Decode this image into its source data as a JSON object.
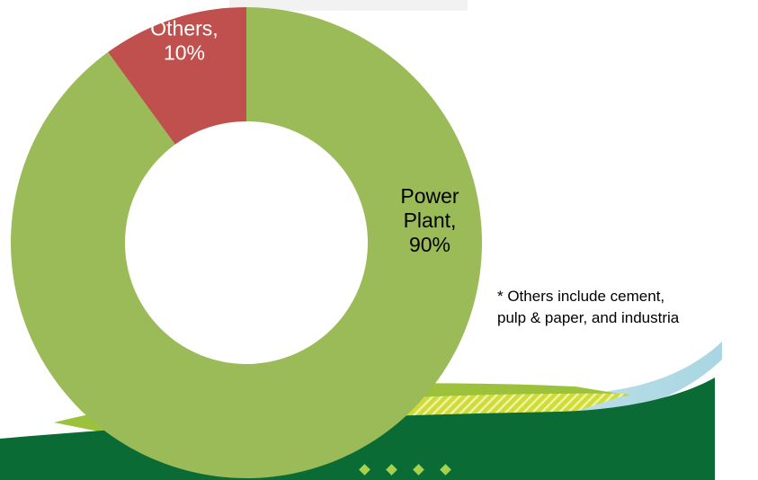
{
  "chart_data": {
    "type": "pie",
    "variant": "donut",
    "slices": [
      {
        "label_lines": [
          "Others,",
          "10%"
        ],
        "value": 10,
        "color": "#c0504d",
        "label_color": "#ffffff"
      },
      {
        "label_lines": [
          "Power",
          "Plant,",
          "90%"
        ],
        "value": 90,
        "color": "#9bbb59",
        "label_color": "#000000"
      }
    ],
    "legend": "none"
  },
  "footnote": {
    "line1": "* Others include cement,",
    "line2": "pulp & paper, and industria"
  },
  "colors": {
    "dark_green": "#0b6b35",
    "band_green": "#9cc23c",
    "band_yellow": "#d9df3a",
    "light_blue": "#bfe1ea",
    "dots": "#a8d14a"
  }
}
